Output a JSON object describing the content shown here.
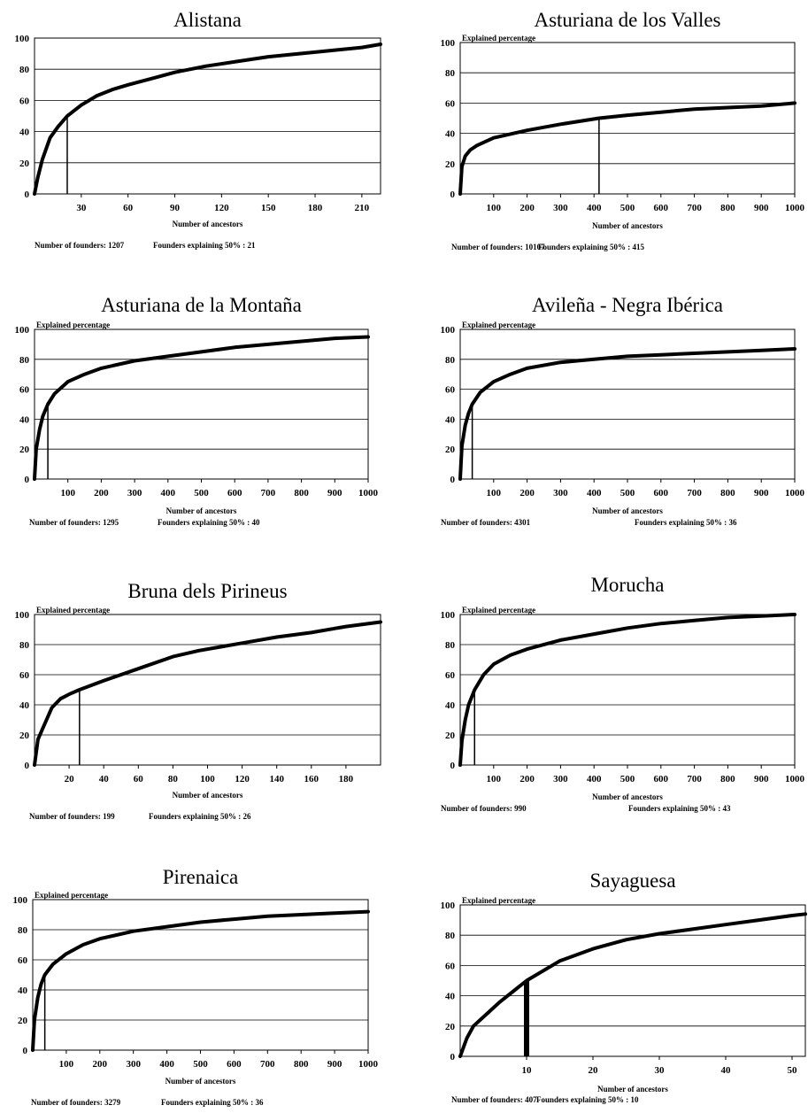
{
  "chart_data": [
    {
      "type": "line",
      "title": "Alistana",
      "ylabel": "",
      "xlabel": "Number of ancestors",
      "xlim": [
        0,
        222
      ],
      "ylim": [
        0,
        100
      ],
      "xticks": [
        30,
        60,
        90,
        120,
        150,
        180,
        210
      ],
      "yticks": [
        0,
        20,
        40,
        60,
        80,
        100
      ],
      "grid": "horizontal",
      "x": [
        0,
        2,
        5,
        10,
        15,
        21,
        30,
        40,
        50,
        60,
        75,
        90,
        110,
        130,
        150,
        170,
        190,
        210,
        222
      ],
      "y": [
        0,
        10,
        22,
        36,
        43,
        50,
        57,
        63,
        67,
        70,
        74,
        78,
        82,
        85,
        88,
        90,
        92,
        94,
        96
      ],
      "marker_x": 21,
      "footer_founders": "Number of founders: 1207",
      "footer_explaining": "Founders explaining 50% : 21"
    },
    {
      "type": "line",
      "title": "Asturiana de los Valles",
      "ylabel": "Explained percentage",
      "xlabel": "Number of ancestors",
      "xlim": [
        0,
        1000
      ],
      "ylim": [
        0,
        100
      ],
      "xticks": [
        100,
        200,
        300,
        400,
        500,
        600,
        700,
        800,
        900,
        1000
      ],
      "yticks": [
        0,
        20,
        40,
        60,
        80,
        100
      ],
      "grid": "horizontal",
      "x": [
        0,
        5,
        15,
        30,
        50,
        100,
        200,
        300,
        415,
        500,
        600,
        700,
        800,
        900,
        1000
      ],
      "y": [
        0,
        18,
        25,
        29,
        32,
        37,
        42,
        46,
        50,
        52,
        54,
        56,
        57,
        58,
        60
      ],
      "marker_x": 415,
      "footer_founders": "Number of founders: 10107",
      "footer_explaining": "Founders explaining 50% : 415"
    },
    {
      "type": "line",
      "title": "Asturiana de la Montaña",
      "ylabel": "Explained percentage",
      "xlabel": "Number of ancestors",
      "xlim": [
        0,
        1000
      ],
      "ylim": [
        0,
        100
      ],
      "xticks": [
        100,
        200,
        300,
        400,
        500,
        600,
        700,
        800,
        900,
        1000
      ],
      "yticks": [
        0,
        20,
        40,
        60,
        80,
        100
      ],
      "grid": "horizontal",
      "x": [
        0,
        5,
        15,
        25,
        40,
        60,
        100,
        150,
        200,
        300,
        400,
        500,
        600,
        700,
        800,
        900,
        1000
      ],
      "y": [
        0,
        20,
        33,
        42,
        50,
        57,
        65,
        70,
        74,
        79,
        82,
        85,
        88,
        90,
        92,
        94,
        95
      ],
      "marker_x": 40,
      "footer_founders": "Number of founders: 1295",
      "footer_explaining": "Founders explaining 50% : 40"
    },
    {
      "type": "line",
      "title": "Avileña - Negra Ibérica",
      "ylabel": "Explained percentage",
      "xlabel": "Number of ancestors",
      "xlim": [
        0,
        1000
      ],
      "ylim": [
        0,
        100
      ],
      "xticks": [
        100,
        200,
        300,
        400,
        500,
        600,
        700,
        800,
        900,
        1000
      ],
      "yticks": [
        0,
        20,
        40,
        60,
        80,
        100
      ],
      "grid": "horizontal",
      "x": [
        0,
        5,
        15,
        25,
        36,
        60,
        100,
        150,
        200,
        300,
        400,
        500,
        600,
        700,
        800,
        900,
        1000
      ],
      "y": [
        0,
        22,
        36,
        44,
        50,
        58,
        65,
        70,
        74,
        78,
        80,
        82,
        83,
        84,
        85,
        86,
        87
      ],
      "marker_x": 36,
      "footer_founders": "Number of founders: 4301",
      "footer_explaining": "Founders explaining 50% : 36"
    },
    {
      "type": "line",
      "title": "Bruna dels Pirineus",
      "ylabel": "Explained percentage",
      "xlabel": "Number of ancestors",
      "xlim": [
        0,
        200
      ],
      "ylim": [
        0,
        100
      ],
      "xticks": [
        20,
        40,
        60,
        80,
        100,
        120,
        140,
        160,
        180
      ],
      "yticks": [
        0,
        20,
        40,
        60,
        80,
        100
      ],
      "grid": "horizontal",
      "x": [
        0,
        2,
        5,
        10,
        15,
        20,
        26,
        40,
        60,
        80,
        95,
        120,
        140,
        160,
        180,
        200
      ],
      "y": [
        0,
        17,
        25,
        38,
        44,
        47,
        50,
        56,
        64,
        72,
        76,
        81,
        85,
        88,
        92,
        95
      ],
      "marker_x": 26,
      "footer_founders": "Number of founders: 199",
      "footer_explaining": "Founders explaining 50% : 26"
    },
    {
      "type": "line",
      "title": "Morucha",
      "ylabel": "Explained percentage",
      "xlabel": "Number of ancestors",
      "xlim": [
        0,
        1000
      ],
      "ylim": [
        0,
        100
      ],
      "xticks": [
        100,
        200,
        300,
        400,
        500,
        600,
        700,
        800,
        900,
        1000
      ],
      "yticks": [
        0,
        20,
        40,
        60,
        80,
        100
      ],
      "grid": "horizontal",
      "x": [
        0,
        5,
        15,
        25,
        43,
        70,
        100,
        150,
        200,
        300,
        400,
        500,
        600,
        700,
        800,
        900,
        1000
      ],
      "y": [
        0,
        16,
        30,
        40,
        50,
        60,
        67,
        73,
        77,
        83,
        87,
        91,
        94,
        96,
        98,
        99,
        100
      ],
      "marker_x": 43,
      "footer_founders": "Number of founders: 990",
      "footer_explaining": "Founders explaining 50% : 43"
    },
    {
      "type": "line",
      "title": "Pirenaica",
      "ylabel": "Explained percentage",
      "xlabel": "Number of ancestors",
      "xlim": [
        0,
        1000
      ],
      "ylim": [
        0,
        100
      ],
      "xticks": [
        100,
        200,
        300,
        400,
        500,
        600,
        700,
        800,
        900,
        1000
      ],
      "yticks": [
        0,
        20,
        40,
        60,
        80,
        100
      ],
      "grid": "horizontal",
      "x": [
        0,
        5,
        15,
        25,
        36,
        60,
        100,
        150,
        200,
        300,
        400,
        500,
        600,
        700,
        800,
        900,
        1000
      ],
      "y": [
        0,
        20,
        35,
        44,
        50,
        57,
        64,
        70,
        74,
        79,
        82,
        85,
        87,
        89,
        90,
        91,
        92
      ],
      "marker_x": 36,
      "footer_founders": "Number of founders: 3279",
      "footer_explaining": "Founders explaining 50% : 36"
    },
    {
      "type": "line",
      "title": "Sayaguesa",
      "ylabel": "Explained percentage",
      "xlabel": "Number of ancestors",
      "xlim": [
        0,
        52
      ],
      "ylim": [
        0,
        100
      ],
      "xticks": [
        10,
        20,
        30,
        40,
        50
      ],
      "yticks": [
        0,
        20,
        40,
        60,
        80,
        100
      ],
      "grid": "horizontal",
      "x": [
        0,
        1,
        2,
        4,
        6,
        8,
        10,
        15,
        20,
        25,
        30,
        35,
        40,
        45,
        50,
        52
      ],
      "y": [
        0,
        12,
        20,
        28,
        36,
        43,
        50,
        63,
        71,
        77,
        81,
        84,
        87,
        90,
        93,
        94
      ],
      "marker_x": 10,
      "marker_thick": true,
      "footer_founders": "Number of founders: 407",
      "footer_explaining": "Founders explaining 50% : 10"
    }
  ]
}
